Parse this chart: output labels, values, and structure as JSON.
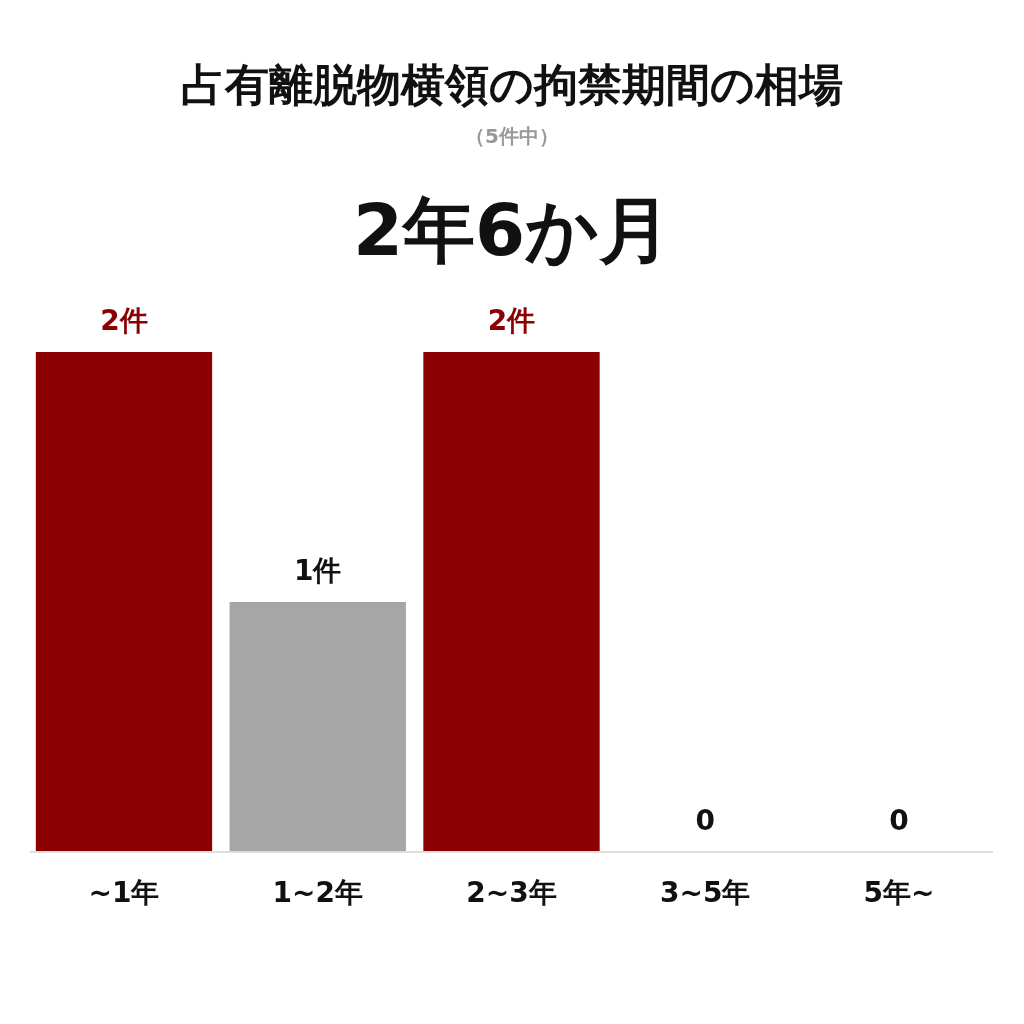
{
  "chart_data": {
    "type": "bar",
    "title": "占有離脱物横領の拘禁期間の相場",
    "subtitle": "（5件中）",
    "annotations": [
      "2年6か月"
    ],
    "categories": [
      "~1年",
      "1~2年",
      "2~3年",
      "3~5年",
      "5年~"
    ],
    "values": [
      2,
      1,
      2,
      0,
      0
    ],
    "colors": [
      "#8b0000",
      "#a6a6a6",
      "#8b0000",
      "#8b0000",
      "#8b0000"
    ],
    "value_labels": [
      "2件",
      "1件",
      "2件",
      "0",
      "0"
    ],
    "relative": false
  }
}
